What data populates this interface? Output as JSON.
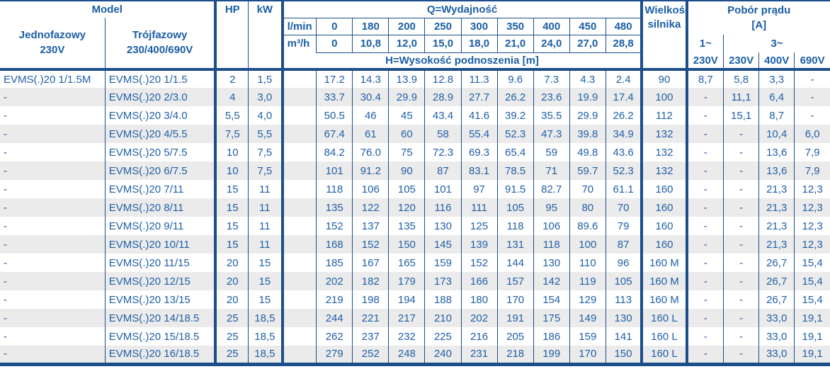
{
  "header": {
    "model_title": "Model",
    "single_phase_label": "Jednofazowy",
    "single_phase_voltage": "230V",
    "three_phase_label": "Trójfazowy",
    "three_phase_voltage": "230/400/690V",
    "hp_label": "HP",
    "kw_label": "kW",
    "q_title": "Q=Wydajność",
    "unit_lmin": "l/min",
    "unit_m3h": "m³/h",
    "q_lmin": [
      "0",
      "180",
      "200",
      "250",
      "300",
      "350",
      "400",
      "450",
      "480"
    ],
    "q_m3h": [
      "0",
      "10,8",
      "12,0",
      "15,0",
      "18,0",
      "21,0",
      "24,0",
      "27,0",
      "28,8"
    ],
    "h_title": "H=Wysokość podnoszenia [m]",
    "motor_size_line1": "Wielkość",
    "motor_size_line2": "silnika",
    "current_title": "Pobór prądu",
    "current_unit": "[A]",
    "phase1_label": "1~",
    "phase3_label": "3~",
    "voltage_cols": [
      "230V",
      "230V",
      "400V",
      "690V"
    ]
  },
  "colors": {
    "text_blue": "#2160a8",
    "header_blue": "#1b5ea6",
    "border_navy": "#1c4e8c",
    "row_alt_gray": "#ebebeb"
  },
  "rows": [
    {
      "single": "EVMS(.)20 1/1.5M",
      "three": "EVMS(.)20 1/1.5",
      "hp": "2",
      "kw": "1,5",
      "h": [
        "17.2",
        "14.3",
        "13.9",
        "12.8",
        "11.3",
        "9.6",
        "7.3",
        "4.3",
        "2.4"
      ],
      "motor": "90",
      "a1_230": "8,7",
      "a3_230": "5,8",
      "a3_400": "3,3",
      "a3_690": "-"
    },
    {
      "single": "-",
      "three": "EVMS(.)20 2/3.0",
      "hp": "4",
      "kw": "3,0",
      "h": [
        "33.7",
        "30.4",
        "29.9",
        "28.9",
        "27.7",
        "26.2",
        "23.6",
        "19.9",
        "17.4"
      ],
      "motor": "100",
      "a1_230": "-",
      "a3_230": "11,1",
      "a3_400": "6,4",
      "a3_690": "-"
    },
    {
      "single": "-",
      "three": "EVMS(.)20 3/4.0",
      "hp": "5,5",
      "kw": "4,0",
      "h": [
        "50.5",
        "46",
        "45",
        "43.4",
        "41.6",
        "39.2",
        "35.5",
        "29.9",
        "26.2"
      ],
      "motor": "112",
      "a1_230": "-",
      "a3_230": "15,1",
      "a3_400": "8,7",
      "a3_690": "-"
    },
    {
      "single": "-",
      "three": "EVMS(.)20 4/5.5",
      "hp": "7,5",
      "kw": "5,5",
      "h": [
        "67.4",
        "61",
        "60",
        "58",
        "55.4",
        "52.3",
        "47.3",
        "39.8",
        "34.9"
      ],
      "motor": "132",
      "a1_230": "-",
      "a3_230": "-",
      "a3_400": "10,4",
      "a3_690": "6,0"
    },
    {
      "single": "-",
      "three": "EVMS(.)20 5/7.5",
      "hp": "10",
      "kw": "7,5",
      "h": [
        "84.2",
        "76.0",
        "75",
        "72.3",
        "69.3",
        "65.4",
        "59",
        "49.8",
        "43.6"
      ],
      "motor": "132",
      "a1_230": "-",
      "a3_230": "-",
      "a3_400": "13,6",
      "a3_690": "7,9"
    },
    {
      "single": "-",
      "three": "EVMS(.)20 6/7.5",
      "hp": "10",
      "kw": "7,5",
      "h": [
        "101",
        "91.2",
        "90",
        "87",
        "83.1",
        "78.5",
        "71",
        "59.7",
        "52.3"
      ],
      "motor": "132",
      "a1_230": "-",
      "a3_230": "-",
      "a3_400": "13,6",
      "a3_690": "7,9"
    },
    {
      "single": "-",
      "three": "EVMS(.)20 7/11",
      "hp": "15",
      "kw": "11",
      "h": [
        "118",
        "106",
        "105",
        "101",
        "97",
        "91.5",
        "82.7",
        "70",
        "61.1"
      ],
      "motor": "160",
      "a1_230": "-",
      "a3_230": "-",
      "a3_400": "21,3",
      "a3_690": "12,3"
    },
    {
      "single": "-",
      "three": "EVMS(.)20 8/11",
      "hp": "15",
      "kw": "11",
      "h": [
        "135",
        "122",
        "120",
        "116",
        "111",
        "105",
        "95",
        "80",
        "70"
      ],
      "motor": "160",
      "a1_230": "-",
      "a3_230": "-",
      "a3_400": "21,3",
      "a3_690": "12,3"
    },
    {
      "single": "-",
      "three": "EVMS(.)20 9/11",
      "hp": "15",
      "kw": "11",
      "h": [
        "152",
        "137",
        "135",
        "130",
        "125",
        "118",
        "106",
        "89.6",
        "79"
      ],
      "motor": "160",
      "a1_230": "-",
      "a3_230": "-",
      "a3_400": "21,3",
      "a3_690": "12,3"
    },
    {
      "single": "-",
      "three": "EVMS(.)20 10/11",
      "hp": "15",
      "kw": "11",
      "h": [
        "168",
        "152",
        "150",
        "145",
        "139",
        "131",
        "118",
        "100",
        "87"
      ],
      "motor": "160",
      "a1_230": "-",
      "a3_230": "-",
      "a3_400": "21,3",
      "a3_690": "12,3"
    },
    {
      "single": "-",
      "three": "EVMS(.)20 11/15",
      "hp": "20",
      "kw": "15",
      "h": [
        "185",
        "167",
        "165",
        "159",
        "152",
        "144",
        "130",
        "110",
        "96"
      ],
      "motor": "160 M",
      "a1_230": "-",
      "a3_230": "-",
      "a3_400": "26,7",
      "a3_690": "15,4"
    },
    {
      "single": "-",
      "three": "EVMS(.)20 12/15",
      "hp": "20",
      "kw": "15",
      "h": [
        "202",
        "182",
        "179",
        "173",
        "166",
        "157",
        "142",
        "119",
        "105"
      ],
      "motor": "160 M",
      "a1_230": "-",
      "a3_230": "-",
      "a3_400": "26,7",
      "a3_690": "15,4"
    },
    {
      "single": "-",
      "three": "EVMS(.)20 13/15",
      "hp": "20",
      "kw": "15",
      "h": [
        "219",
        "198",
        "194",
        "188",
        "180",
        "170",
        "154",
        "129",
        "113"
      ],
      "motor": "160 M",
      "a1_230": "-",
      "a3_230": "-",
      "a3_400": "26,7",
      "a3_690": "15,4"
    },
    {
      "single": "-",
      "three": "EVMS(.)20 14/18.5",
      "hp": "25",
      "kw": "18,5",
      "h": [
        "244",
        "221",
        "217",
        "210",
        "202",
        "191",
        "175",
        "149",
        "130"
      ],
      "motor": "160 L",
      "a1_230": "-",
      "a3_230": "-",
      "a3_400": "33,0",
      "a3_690": "19,1"
    },
    {
      "single": "-",
      "three": "EVMS(.)20 15/18.5",
      "hp": "25",
      "kw": "18,5",
      "h": [
        "262",
        "237",
        "232",
        "225",
        "216",
        "205",
        "186",
        "159",
        "141"
      ],
      "motor": "160 L",
      "a1_230": "-",
      "a3_230": "-",
      "a3_400": "33,0",
      "a3_690": "19,1"
    },
    {
      "single": "-",
      "three": "EVMS(.)20 16/18.5",
      "hp": "25",
      "kw": "18,5",
      "h": [
        "279",
        "252",
        "248",
        "240",
        "231",
        "218",
        "199",
        "170",
        "150"
      ],
      "motor": "160 L",
      "a1_230": "-",
      "a3_230": "-",
      "a3_400": "33,0",
      "a3_690": "19,1"
    }
  ]
}
